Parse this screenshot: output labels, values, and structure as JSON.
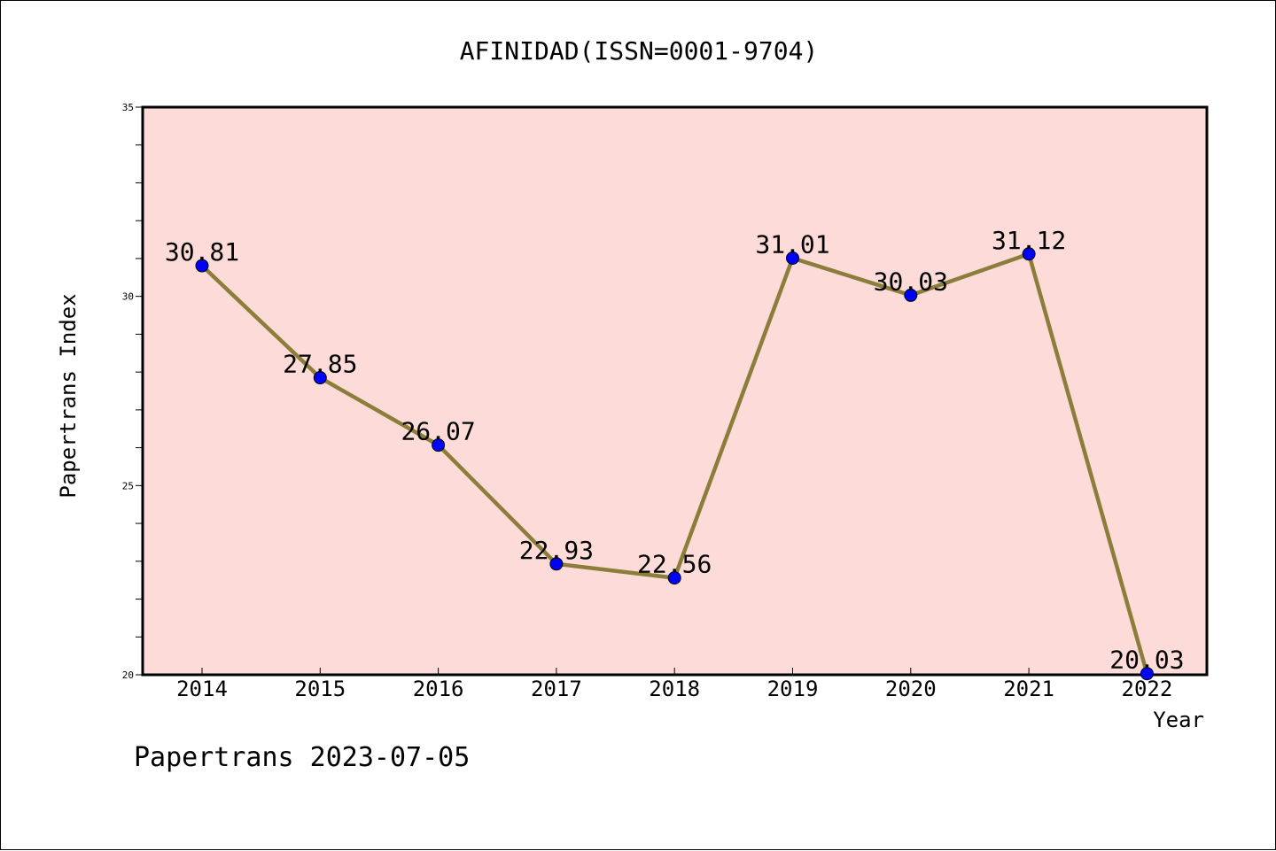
{
  "chart_data": {
    "type": "line",
    "title": "AFINIDAD(ISSN=0001-9704)",
    "xlabel": "Year",
    "ylabel": "Papertrans Index",
    "categories": [
      "2014",
      "2015",
      "2016",
      "2017",
      "2018",
      "2019",
      "2020",
      "2021",
      "2022"
    ],
    "series": [
      {
        "values": [
          30.81,
          27.85,
          26.07,
          22.93,
          22.56,
          31.01,
          30.03,
          31.12,
          20.03
        ],
        "value_labels": [
          "30.81",
          "27.85",
          "26.07",
          "22.93",
          "22.56",
          "31.01",
          "30.03",
          "31.12",
          "20.03"
        ],
        "line_color": "#8B7D3A",
        "marker_color": "#0000FF"
      }
    ],
    "ylim": [
      20,
      35
    ],
    "yticks": [
      "20",
      "25",
      "30",
      "35"
    ],
    "grid": false,
    "plot_background": "#FDDBD8"
  },
  "footer": {
    "text": "Papertrans 2023-07-05"
  }
}
